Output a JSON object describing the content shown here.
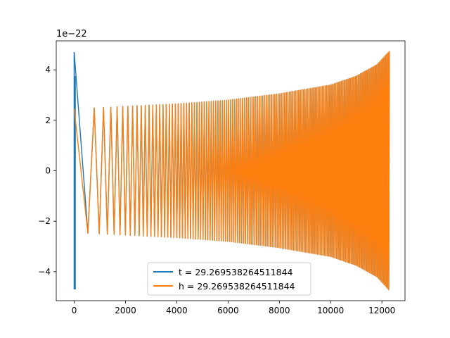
{
  "chart_data": {
    "type": "line",
    "title": "",
    "xlabel": "",
    "ylabel": "",
    "y_offset_label": "1e−22",
    "xlim": [
      -700,
      12900
    ],
    "ylim": [
      -5.15,
      5.15
    ],
    "x_ticks": [
      0,
      2000,
      4000,
      6000,
      8000,
      10000,
      12000
    ],
    "x_tick_labels": [
      "0",
      "2000",
      "4000",
      "6000",
      "8000",
      "10000",
      "12000"
    ],
    "y_ticks": [
      -4,
      -2,
      0,
      2,
      4
    ],
    "y_tick_labels": [
      "−4",
      "−2",
      "0",
      "2",
      "4"
    ],
    "grid": false,
    "legend_position": "lower-center",
    "series": [
      {
        "name": "t = 29.269538264511844",
        "color": "#1f77b4",
        "x_range": [
          0,
          12290
        ],
        "envelope": [
          [
            0,
            4.7
          ],
          [
            40,
            3.8
          ],
          [
            100,
            2.45
          ],
          [
            2000,
            2.55
          ],
          [
            4000,
            2.65
          ],
          [
            6000,
            2.8
          ],
          [
            8000,
            3.05
          ],
          [
            10000,
            3.4
          ],
          [
            11000,
            3.75
          ],
          [
            11800,
            4.2
          ],
          [
            12290,
            4.7
          ]
        ],
        "cycles_approx": 150
      },
      {
        "name": "h = 29.269538264511844",
        "color": "#ff7f0e",
        "x_range": [
          0,
          12290
        ],
        "envelope": [
          [
            0,
            2.45
          ],
          [
            2000,
            2.55
          ],
          [
            4000,
            2.65
          ],
          [
            6000,
            2.8
          ],
          [
            8000,
            3.05
          ],
          [
            10000,
            3.4
          ],
          [
            11000,
            3.75
          ],
          [
            11800,
            4.2
          ],
          [
            12290,
            4.75
          ]
        ],
        "cycles_approx": 150
      }
    ]
  }
}
